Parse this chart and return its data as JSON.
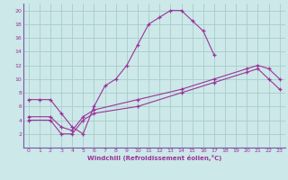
{
  "xlabel": "Windchill (Refroidissement éolien,°C)",
  "bg_color": "#cce8e8",
  "grid_color": "#aacccc",
  "line_color": "#993399",
  "spine_color": "#7755aa",
  "xlim": [
    -0.5,
    23.5
  ],
  "ylim": [
    0,
    21
  ],
  "xticks": [
    0,
    1,
    2,
    3,
    4,
    5,
    6,
    7,
    8,
    9,
    10,
    11,
    12,
    13,
    14,
    15,
    16,
    17,
    18,
    19,
    20,
    21,
    22,
    23
  ],
  "yticks": [
    2,
    4,
    6,
    8,
    10,
    12,
    14,
    16,
    18,
    20
  ],
  "series1_x": [
    0,
    1,
    2,
    3,
    4,
    5,
    6,
    7,
    8,
    9,
    10,
    11,
    12,
    13,
    14,
    15,
    16,
    17
  ],
  "series1_y": [
    7,
    7,
    7,
    5,
    3,
    2,
    6,
    9,
    10,
    12,
    15,
    18,
    19,
    20,
    20,
    18.5,
    17,
    13.5
  ],
  "series2_x": [
    0,
    2,
    3,
    4,
    5,
    6,
    10,
    14,
    17,
    20,
    21,
    22,
    23
  ],
  "series2_y": [
    4.5,
    4.5,
    3,
    2.5,
    4.5,
    5.5,
    7,
    8.5,
    10,
    11.5,
    12,
    11.5,
    10
  ],
  "series3_x": [
    0,
    2,
    3,
    4,
    5,
    6,
    10,
    14,
    17,
    20,
    21,
    22,
    23
  ],
  "series3_y": [
    4,
    4,
    2,
    2,
    4,
    5,
    6,
    8,
    9.5,
    11,
    11.5,
    10,
    8.5
  ]
}
